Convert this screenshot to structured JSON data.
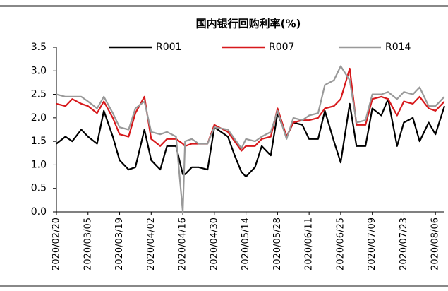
{
  "chart_data": {
    "type": "line",
    "title": "国内银行回购利率(%)",
    "x": [
      "2020/02/20",
      "2020/02/24",
      "2020/02/27",
      "2020/03/02",
      "2020/03/05",
      "2020/03/09",
      "2020/03/12",
      "2020/03/16",
      "2020/03/19",
      "2020/03/23",
      "2020/03/26",
      "2020/03/30",
      "2020/04/02",
      "2020/04/06",
      "2020/04/09",
      "2020/04/13",
      "2020/04/16",
      "2020/04/17",
      "2020/04/20",
      "2020/04/23",
      "2020/04/27",
      "2020/04/30",
      "2020/05/06",
      "2020/05/09",
      "2020/05/12",
      "2020/05/14",
      "2020/05/18",
      "2020/05/21",
      "2020/05/25",
      "2020/05/28",
      "2020/06/01",
      "2020/06/04",
      "2020/06/08",
      "2020/06/11",
      "2020/06/15",
      "2020/06/18",
      "2020/06/22",
      "2020/06/25",
      "2020/06/29",
      "2020/07/02",
      "2020/07/06",
      "2020/07/09",
      "2020/07/13",
      "2020/07/16",
      "2020/07/20",
      "2020/07/23",
      "2020/07/27",
      "2020/07/30",
      "2020/08/03",
      "2020/08/06",
      "2020/08/10"
    ],
    "series": [
      {
        "name": "R001",
        "color": "#000000",
        "values": [
          1.45,
          1.6,
          1.5,
          1.75,
          1.6,
          1.45,
          2.15,
          1.6,
          1.1,
          0.9,
          0.95,
          1.75,
          1.1,
          0.9,
          1.4,
          1.4,
          0.8,
          0.8,
          0.95,
          0.95,
          0.9,
          1.8,
          1.6,
          1.2,
          0.85,
          0.75,
          0.95,
          1.4,
          1.2,
          2.1,
          1.6,
          1.9,
          1.85,
          1.55,
          1.55,
          2.15,
          1.5,
          1.05,
          2.3,
          1.4,
          1.4,
          2.2,
          2.05,
          2.4,
          1.4,
          1.9,
          2.0,
          1.5,
          1.9,
          1.65,
          2.25
        ]
      },
      {
        "name": "R007",
        "color": "#d7191c",
        "values": [
          2.3,
          2.25,
          2.4,
          2.3,
          2.25,
          2.1,
          2.35,
          2.0,
          1.65,
          1.6,
          2.1,
          2.45,
          1.55,
          1.4,
          1.55,
          1.55,
          1.45,
          1.4,
          1.45,
          1.45,
          1.45,
          1.85,
          1.7,
          1.5,
          1.3,
          1.4,
          1.4,
          1.55,
          1.6,
          2.2,
          1.6,
          1.9,
          1.95,
          1.95,
          2.0,
          2.2,
          2.25,
          2.4,
          3.05,
          1.85,
          1.85,
          2.4,
          2.45,
          2.4,
          2.05,
          2.35,
          2.3,
          2.45,
          2.2,
          2.15,
          2.35
        ]
      },
      {
        "name": "R014",
        "color": "#999999",
        "values": [
          2.5,
          2.45,
          2.45,
          2.45,
          2.35,
          2.2,
          2.45,
          2.1,
          1.8,
          1.75,
          2.2,
          2.35,
          1.7,
          1.65,
          1.7,
          1.6,
          0.0,
          1.5,
          1.55,
          1.45,
          1.45,
          1.8,
          1.75,
          1.55,
          1.35,
          1.55,
          1.5,
          1.6,
          1.7,
          2.15,
          1.55,
          2.0,
          1.95,
          2.05,
          2.1,
          2.7,
          2.8,
          3.1,
          2.8,
          1.9,
          1.95,
          2.5,
          2.5,
          2.55,
          2.4,
          2.55,
          2.5,
          2.65,
          2.25,
          2.25,
          2.45
        ]
      }
    ],
    "xlim": [
      "2020/02/20",
      "2020/08/10"
    ],
    "xticks": [
      "2020/02/20",
      "2020/03/05",
      "2020/03/19",
      "2020/04/02",
      "2020/04/16",
      "2020/04/30",
      "2020/05/14",
      "2020/05/28",
      "2020/06/11",
      "2020/06/25",
      "2020/07/09",
      "2020/07/23",
      "2020/08/06"
    ],
    "ylim": [
      0,
      3.5
    ],
    "yticks": [
      {
        "value": 0,
        "label": "0.0"
      },
      0.5,
      {
        "value": 1,
        "label": "1.0"
      },
      1.5,
      {
        "value": 2,
        "label": "2.0"
      },
      2.5,
      {
        "value": 3,
        "label": "3.0"
      },
      3.5
    ],
    "legend": "top"
  }
}
